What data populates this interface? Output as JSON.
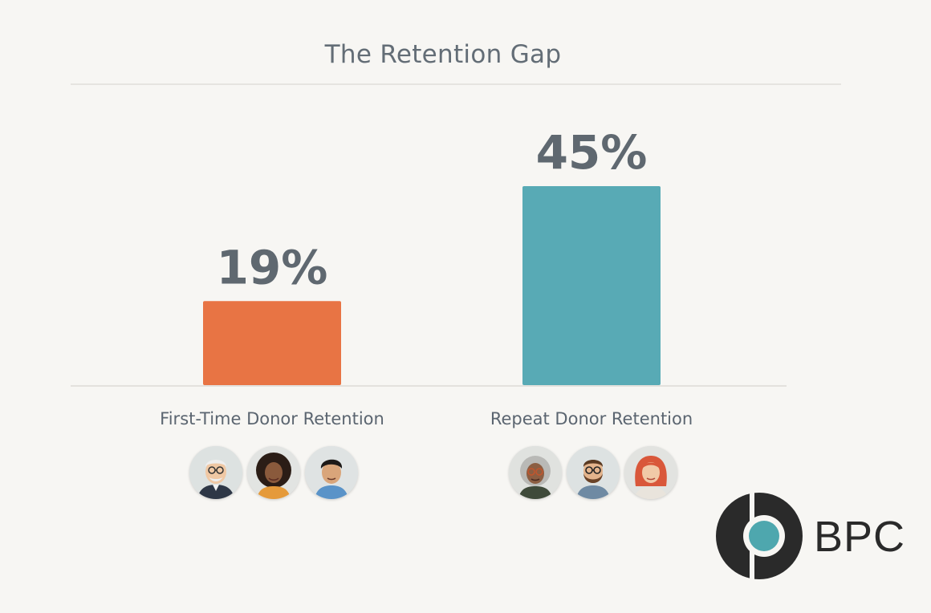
{
  "chart_data": {
    "type": "bar",
    "title": "The Retention Gap",
    "categories": [
      "First-Time Donor Retention",
      "Repeat Donor Retention"
    ],
    "values": [
      19,
      45
    ],
    "value_labels": [
      "19%",
      "45%"
    ],
    "colors": [
      "#e87444",
      "#58aab5"
    ],
    "ylim": [
      0,
      45
    ],
    "grid": false,
    "legend": "none"
  },
  "avatars": {
    "first_time": [
      "man-with-glasses-avatar",
      "woman-curly-hair-avatar",
      "young-man-avatar"
    ],
    "repeat": [
      "older-woman-glasses-avatar",
      "bearded-man-glasses-avatar",
      "red-hair-woman-avatar"
    ]
  },
  "logo": {
    "text": "BPC",
    "mark_color": "#2a2a2a",
    "dot_color": "#4ea7ae"
  }
}
